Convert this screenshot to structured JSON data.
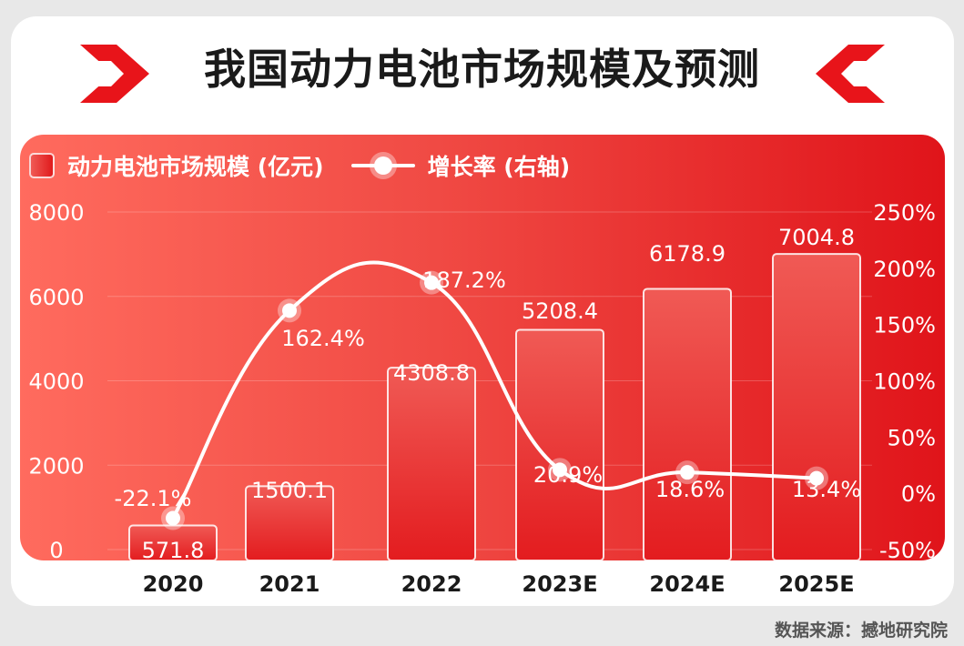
{
  "title": "我国动力电池市场规模及预测",
  "source": "数据来源：撼地研究院",
  "colors": {
    "accent": "#e8141a",
    "bar_top": "#f05a55",
    "bar_bottom": "#e31c1f",
    "line": "#ffffff"
  },
  "chart_data": {
    "type": "bar",
    "title": "我国动力电池市场规模及预测",
    "categories": [
      "2020",
      "2021",
      "2022",
      "2023E",
      "2024E",
      "2025E"
    ],
    "series": [
      {
        "name": "动力电池市场规模 (亿元)",
        "type": "bar",
        "axis": "left",
        "values": [
          571.8,
          1500.1,
          4308.8,
          5208.4,
          6178.9,
          7004.8
        ],
        "labels": [
          "571.8",
          "1500.1",
          "4308.8",
          "5208.4",
          "6178.9",
          "7004.8"
        ]
      },
      {
        "name": "增长率 (右轴)",
        "type": "line",
        "axis": "right",
        "values": [
          -22.1,
          162.4,
          187.2,
          20.9,
          18.6,
          13.4
        ],
        "labels": [
          "-22.1%",
          "162.4%",
          "187.2%",
          "20.9%",
          "18.6%",
          "13.4%"
        ]
      }
    ],
    "y_left": {
      "min": 0,
      "max": 8000,
      "ticks": [
        "0",
        "2000",
        "4000",
        "6000",
        "8000"
      ]
    },
    "y_right": {
      "min": -50,
      "max": 250,
      "ticks": [
        "-50%",
        "0%",
        "50%",
        "100%",
        "150%",
        "200%",
        "250%"
      ]
    },
    "grid": true,
    "legend_position": "top-left"
  }
}
